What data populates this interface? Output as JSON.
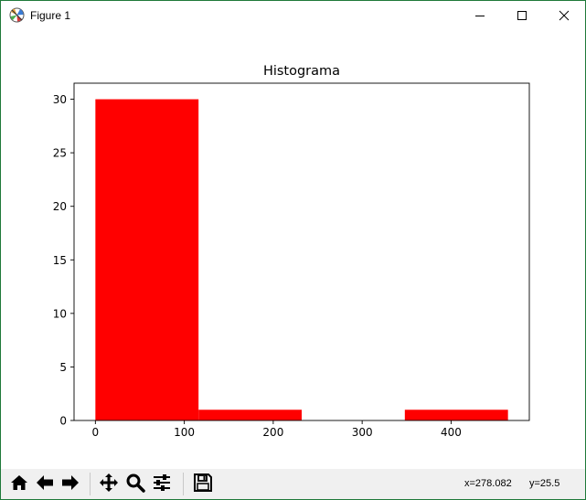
{
  "window": {
    "title": "Figure 1",
    "app_icon": "matplotlib-icon",
    "controls": [
      "minimize-icon",
      "maximize-icon",
      "close-icon"
    ]
  },
  "chart_data": {
    "type": "bar",
    "title": "Histograma",
    "xlabel": "",
    "ylabel": "",
    "xlim": [
      -24,
      488
    ],
    "ylim": [
      0,
      31.5
    ],
    "xticks": [
      0,
      100,
      200,
      300,
      400
    ],
    "yticks": [
      0,
      5,
      10,
      15,
      20,
      25,
      30
    ],
    "bins": [
      {
        "x0": 0,
        "x1": 116,
        "count": 30
      },
      {
        "x0": 116,
        "x1": 232,
        "count": 1
      },
      {
        "x0": 232,
        "x1": 348,
        "count": 0
      },
      {
        "x0": 348,
        "x1": 464,
        "count": 1
      }
    ],
    "bar_color": "#ff0000",
    "grid": false,
    "legend": "none"
  },
  "toolbar": {
    "buttons": [
      {
        "name": "home-icon",
        "tooltip": "Home"
      },
      {
        "name": "back-icon",
        "tooltip": "Back"
      },
      {
        "name": "forward-icon",
        "tooltip": "Forward"
      },
      {
        "name": "pan-icon",
        "tooltip": "Pan"
      },
      {
        "name": "zoom-icon",
        "tooltip": "Zoom"
      },
      {
        "name": "configure-subplots-icon",
        "tooltip": "Subplots"
      },
      {
        "name": "save-icon",
        "tooltip": "Save"
      }
    ],
    "coord_x": "x=278.082",
    "coord_y": "y=25.5"
  }
}
